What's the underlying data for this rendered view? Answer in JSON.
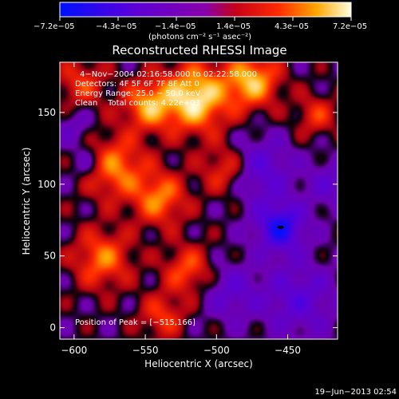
{
  "chart_data": {
    "type": "heatmap",
    "title": "Reconstructed RHESSI Image",
    "xlabel": "Heliocentric X (arcsec)",
    "ylabel": "Heliocentric Y (arcsec)",
    "xlim": [
      -610,
      -415
    ],
    "ylim": [
      -8,
      185
    ],
    "x_ticks": [
      -600,
      -550,
      -500,
      -450
    ],
    "x_tick_labels": [
      "−600",
      "−550",
      "−500",
      "−450"
    ],
    "y_ticks": [
      0,
      50,
      100,
      150
    ],
    "y_tick_labels": [
      "0",
      "50",
      "100",
      "150"
    ],
    "colorbar": {
      "min": -7.2e-05,
      "max": 7.2e-05,
      "tick_labels": [
        "−7.2e−05",
        "−4.3e−05",
        "−1.4e−05",
        "1.4e−05",
        "4.3e−05",
        "7.2e−05"
      ],
      "units_label": "(photons cm⁻² s⁻¹ asec⁻²)"
    },
    "annotations": [
      "4−Nov−2004 02:16:58.000 to 02:22:58.000",
      "Detectors: 4F 5F 6F 7F 8F Att 0",
      "Energy Range: 25.0 − 50.0 keV",
      "Clean    Total counts: 4.22e+03"
    ],
    "peak_label": "Position of Peak = [−515,166]",
    "peak": [
      -515,
      166
    ],
    "timestamp": "19−Jun−2013 02:54",
    "grid": false,
    "intensity_blobs": [
      {
        "x": -515,
        "y": 160,
        "a": 6.8e-05,
        "s": 16
      },
      {
        "x": -475,
        "y": 172,
        "a": 5.6e-05,
        "s": 13
      },
      {
        "x": -548,
        "y": 155,
        "a": 4.8e-05,
        "s": 12
      },
      {
        "x": -572,
        "y": 112,
        "a": 4.6e-05,
        "s": 15
      },
      {
        "x": -540,
        "y": 90,
        "a": 4.4e-05,
        "s": 13
      },
      {
        "x": -595,
        "y": 170,
        "a": 3e-05,
        "s": 12
      },
      {
        "x": -580,
        "y": 48,
        "a": 4.2e-05,
        "s": 14
      },
      {
        "x": -520,
        "y": 40,
        "a": 3.6e-05,
        "s": 12
      },
      {
        "x": -538,
        "y": 8,
        "a": 3e-05,
        "s": 11
      },
      {
        "x": -493,
        "y": 110,
        "a": 3.4e-05,
        "s": 12
      },
      {
        "x": -430,
        "y": 148,
        "a": 2.8e-05,
        "s": 10
      },
      {
        "x": -455,
        "y": 70,
        "a": -5.8e-05,
        "s": 12
      },
      {
        "x": -470,
        "y": 110,
        "a": -3.4e-05,
        "s": 16
      },
      {
        "x": -442,
        "y": 20,
        "a": -3.2e-05,
        "s": 18
      },
      {
        "x": -490,
        "y": 25,
        "a": -2.6e-05,
        "s": 14
      },
      {
        "x": -590,
        "y": 115,
        "a": -2.2e-05,
        "s": 9
      },
      {
        "x": -600,
        "y": 140,
        "a": -1.8e-05,
        "s": 9
      },
      {
        "x": -420,
        "y": 100,
        "a": -2.4e-05,
        "s": 12
      }
    ]
  }
}
